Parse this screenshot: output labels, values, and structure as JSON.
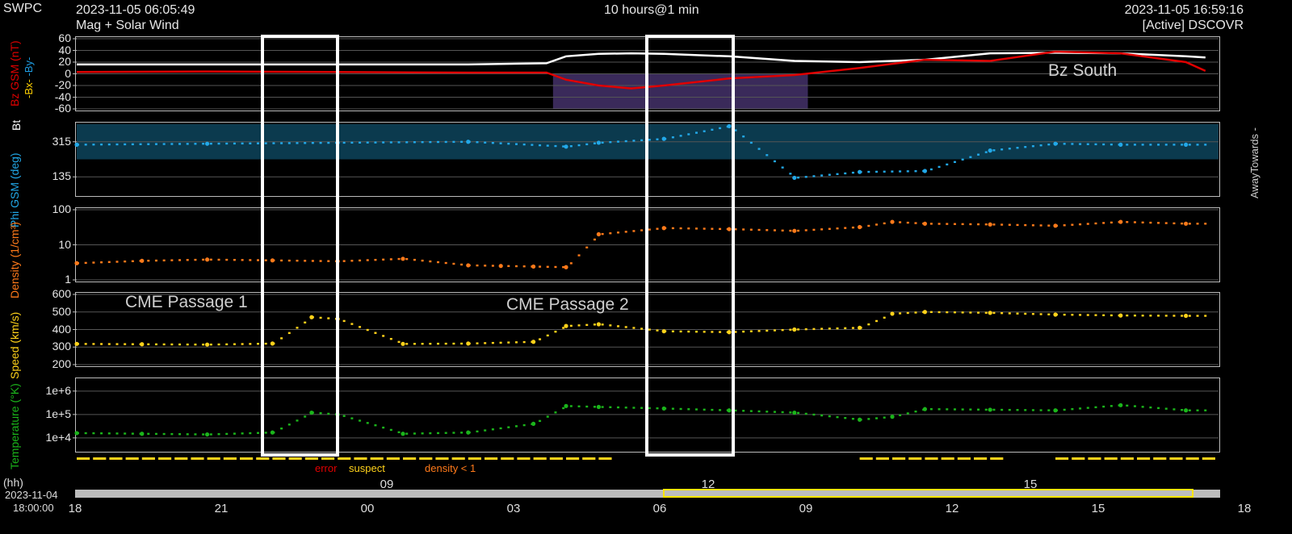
{
  "header": {
    "source": "SWPC",
    "start_time": "2023-11-05 06:05:49",
    "subtitle": "Mag + Solar Wind",
    "span": "10 hours@1 min",
    "end_time": "2023-11-05 16:59:16",
    "status": "[Active] DSCOVR"
  },
  "colors": {
    "bz": "#e00000",
    "bt": "#ffffff",
    "bx": "#ffd000",
    "by": "#1e9be0",
    "phi": "#22a8e8",
    "density": "#ff7a1a",
    "speed": "#ffd21a",
    "temperature": "#1bb51b",
    "bz_south_fill": "#3a2a5a",
    "phi_band": "#0b3a4e",
    "phi_band_red": "#5a0b0b"
  },
  "annotations": {
    "bz_south": "Bz South",
    "cme1": "CME Passage 1",
    "cme2": "CME Passage 2",
    "away_towards": "AwayTowards -"
  },
  "quality_legend": {
    "error": "error",
    "suspect": "suspect",
    "density": "density < 1"
  },
  "time_axis": {
    "hh_label": "(hh)",
    "start_date": "2023-11-04",
    "start_time": "18:00:00",
    "bottom_ticks": [
      "18",
      "21",
      "00",
      "03",
      "06",
      "09",
      "12",
      "15",
      "18"
    ],
    "top_ticks": [
      "09",
      "12",
      "15"
    ]
  },
  "chart_data": [
    {
      "type": "line",
      "panel": "mag",
      "ylabel_parts": [
        "Bz GSM (nT)",
        "Bt",
        "-Bx-",
        "-By-"
      ],
      "yticks": [
        "60",
        "40",
        "20",
        "0",
        "-20",
        "-40",
        "-60"
      ],
      "ylim": [
        -60,
        60
      ],
      "x_hours_since_start": [
        0,
        2,
        4,
        6,
        7.2,
        7.5,
        8,
        8.5,
        9,
        10,
        11,
        12,
        13,
        14,
        15,
        16,
        17,
        17.3
      ],
      "series": [
        {
          "name": "Bt",
          "values": [
            16,
            16,
            16,
            16,
            18,
            30,
            34,
            35,
            34,
            30,
            22,
            20,
            24,
            35,
            36,
            35,
            30,
            28
          ]
        },
        {
          "name": "Bz GSM",
          "values": [
            3,
            4,
            3,
            2,
            2,
            -10,
            -20,
            -25,
            -20,
            -8,
            -2,
            10,
            24,
            22,
            38,
            35,
            20,
            5
          ]
        }
      ]
    },
    {
      "type": "scatter",
      "panel": "phi",
      "ylabel": "Phi GSM (deg)",
      "yticks": [
        "315",
        "135"
      ],
      "ylim": [
        45,
        405
      ],
      "x_hours_since_start": [
        0,
        2,
        4,
        6,
        7.5,
        8,
        9,
        10,
        11,
        12,
        13,
        14,
        15,
        16,
        17
      ],
      "values": [
        300,
        305,
        310,
        315,
        290,
        310,
        330,
        395,
        130,
        160,
        165,
        270,
        305,
        300,
        300
      ]
    },
    {
      "type": "scatter",
      "panel": "density",
      "ylabel": "Density (1/cm³)",
      "yticks": [
        "100",
        "10",
        "1"
      ],
      "scale": "log",
      "ylim": [
        1,
        100
      ],
      "x_hours_since_start": [
        0,
        1,
        2,
        3,
        4,
        5,
        6,
        6.5,
        7,
        7.5,
        8,
        9,
        10,
        11,
        12,
        12.5,
        13,
        14,
        15,
        16,
        17
      ],
      "values": [
        3,
        3.5,
        3.8,
        3.6,
        3.4,
        4,
        2.6,
        2.5,
        2.4,
        2.3,
        20,
        30,
        28,
        25,
        32,
        45,
        40,
        38,
        35,
        45,
        40
      ]
    },
    {
      "type": "scatter",
      "panel": "speed",
      "ylabel": "Speed (km/s)",
      "yticks": [
        "600",
        "500",
        "400",
        "300",
        "200"
      ],
      "ylim": [
        200,
        600
      ],
      "x_hours_since_start": [
        0,
        1,
        2,
        3,
        3.6,
        4,
        5,
        6,
        7,
        7.5,
        8,
        9,
        10,
        11,
        12,
        12.5,
        13,
        14,
        15,
        16,
        17
      ],
      "values": [
        318,
        316,
        314,
        320,
        470,
        460,
        318,
        320,
        330,
        420,
        430,
        390,
        385,
        400,
        410,
        490,
        500,
        495,
        485,
        480,
        478
      ]
    },
    {
      "type": "scatter",
      "panel": "temperature",
      "ylabel": "Temperature (°K)",
      "yticks": [
        "1e+6",
        "1e+5",
        "1e+4"
      ],
      "scale": "log",
      "ylim": [
        3000,
        3000000
      ],
      "x_hours_since_start": [
        0,
        1,
        2,
        3,
        3.6,
        4,
        5,
        6,
        7,
        7.5,
        8,
        9,
        10,
        11,
        12,
        12.5,
        13,
        14,
        15,
        16,
        17
      ],
      "values": [
        16000,
        15000,
        14000,
        17000,
        120000,
        100000,
        15000,
        17000,
        40000,
        230000,
        210000,
        180000,
        150000,
        120000,
        60000,
        80000,
        170000,
        160000,
        150000,
        250000,
        150000
      ]
    }
  ]
}
